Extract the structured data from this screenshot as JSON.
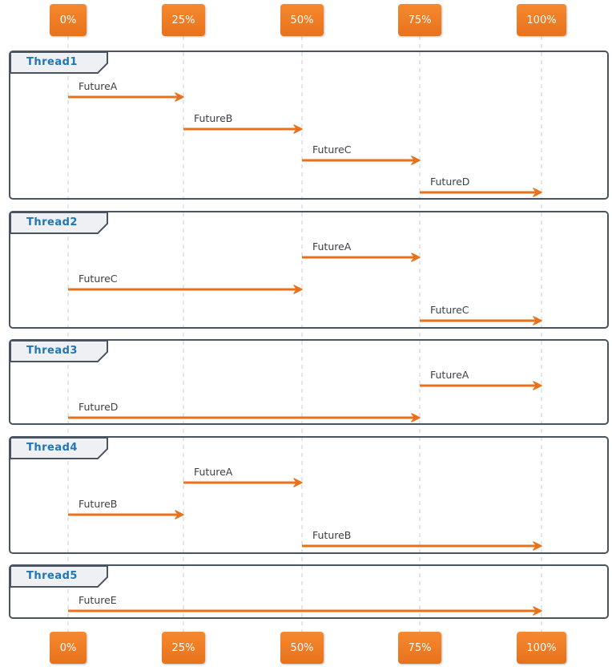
{
  "colors": {
    "accent": "#e8721c",
    "accent_light": "#f5892f",
    "frame_border": "#4a5461",
    "frame_label": "#1f76b6",
    "lifeline": "#c9ced6"
  },
  "participants": [
    "0%",
    "25%",
    "50%",
    "75%",
    "100%"
  ],
  "groups": [
    {
      "label": "Thread1",
      "messages": [
        {
          "label": "FutureA",
          "from": 0,
          "to": 1
        },
        {
          "label": "FutureB",
          "from": 1,
          "to": 2
        },
        {
          "label": "FutureC",
          "from": 2,
          "to": 3
        },
        {
          "label": "FutureD",
          "from": 3,
          "to": 4
        }
      ]
    },
    {
      "label": "Thread2",
      "messages": [
        {
          "label": "FutureA",
          "from": 2,
          "to": 3
        },
        {
          "label": "FutureC",
          "from": 0,
          "to": 2
        },
        {
          "label": "FutureC",
          "from": 3,
          "to": 4
        }
      ]
    },
    {
      "label": "Thread3",
      "messages": [
        {
          "label": "FutureA",
          "from": 3,
          "to": 4
        },
        {
          "label": "FutureD",
          "from": 0,
          "to": 3
        }
      ]
    },
    {
      "label": "Thread4",
      "messages": [
        {
          "label": "FutureA",
          "from": 1,
          "to": 2
        },
        {
          "label": "FutureB",
          "from": 0,
          "to": 1
        },
        {
          "label": "FutureB",
          "from": 2,
          "to": 4
        }
      ]
    },
    {
      "label": "Thread5",
      "messages": [
        {
          "label": "FutureE",
          "from": 0,
          "to": 4
        }
      ]
    }
  ]
}
